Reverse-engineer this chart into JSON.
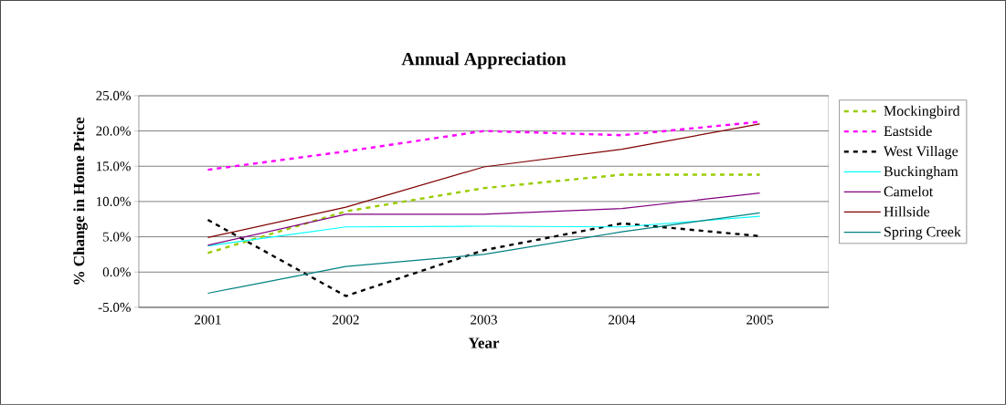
{
  "chart_data": {
    "type": "line",
    "title": "Annual Appreciation",
    "xlabel": "Year",
    "ylabel": "% Change in Home Price",
    "categories": [
      "2001",
      "2002",
      "2003",
      "2004",
      "2005"
    ],
    "series": [
      {
        "name": "Mockingbird",
        "color": "#99cc00",
        "line_style": "dashed",
        "values": [
          2.7,
          8.6,
          11.9,
          13.8,
          13.8
        ]
      },
      {
        "name": "Eastside",
        "color": "#ff00ff",
        "line_style": "dashed",
        "values": [
          14.5,
          17.1,
          20.0,
          19.4,
          21.3
        ]
      },
      {
        "name": "West Village",
        "color": "#000000",
        "line_style": "dashed",
        "values": [
          7.4,
          -3.4,
          3.1,
          6.9,
          5.1
        ]
      },
      {
        "name": "Buckingham",
        "color": "#00ffff",
        "line_style": "solid",
        "values": [
          3.7,
          6.4,
          6.5,
          6.4,
          7.9
        ]
      },
      {
        "name": "Camelot",
        "color": "#800080",
        "line_style": "solid",
        "values": [
          3.8,
          8.2,
          8.2,
          9.0,
          11.2
        ]
      },
      {
        "name": "Hillside",
        "color": "#800000",
        "line_style": "solid",
        "values": [
          4.9,
          9.2,
          14.9,
          17.4,
          21.0
        ]
      },
      {
        "name": "Spring Creek",
        "color": "#008080",
        "line_style": "solid",
        "values": [
          -3.0,
          0.8,
          2.5,
          5.7,
          8.4
        ]
      }
    ],
    "ylim": [
      -5,
      25
    ],
    "yticks": [
      {
        "value": -5,
        "label": "-5.0%"
      },
      {
        "value": 0,
        "label": "0.0%"
      },
      {
        "value": 5,
        "label": "5.0%"
      },
      {
        "value": 10,
        "label": "10.0%"
      },
      {
        "value": 15,
        "label": "15.0%"
      },
      {
        "value": 20,
        "label": "20.0%"
      },
      {
        "value": 25,
        "label": "25.0%"
      }
    ],
    "grid": "y",
    "legend": "right",
    "marker": "none"
  }
}
